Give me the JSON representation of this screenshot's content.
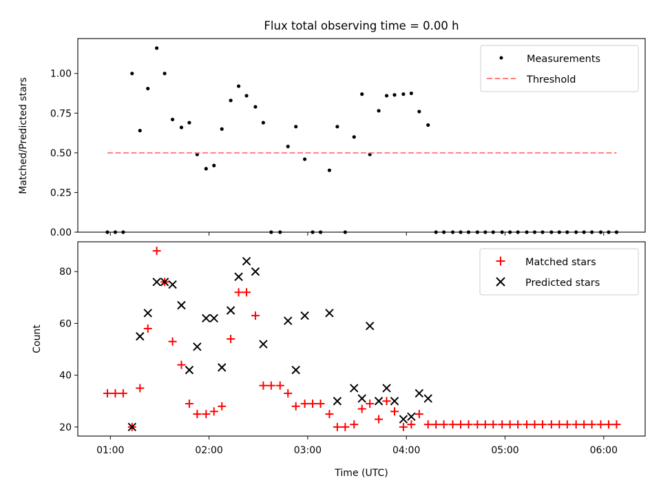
{
  "chart_data": [
    {
      "type": "scatter",
      "title": "Flux total observing time = 0.00 h",
      "xlabel": "",
      "ylabel": "Matched/Predicted stars",
      "ylim": [
        0,
        1.22
      ],
      "xlim_hours": [
        0.67,
        6.42
      ],
      "yticks": [
        0.0,
        0.25,
        0.5,
        0.75,
        1.0
      ],
      "ytick_labels": [
        "0.00",
        "0.25",
        "0.50",
        "0.75",
        "1.00"
      ],
      "grid": false,
      "legend_position": "top-right",
      "series": [
        {
          "name": "Measurements",
          "marker": "dot",
          "color": "#000000",
          "x_hours": [
            0.97,
            1.05,
            1.13,
            1.22,
            1.3,
            1.38,
            1.47,
            1.55,
            1.63,
            1.72,
            1.8,
            1.88,
            1.97,
            2.05,
            2.13,
            2.22,
            2.3,
            2.38,
            2.47,
            2.55,
            2.63,
            2.72,
            2.8,
            2.88,
            2.97,
            3.05,
            3.13,
            3.22,
            3.3,
            3.38,
            3.47,
            3.55,
            3.63,
            3.72,
            3.8,
            3.88,
            3.97,
            4.05,
            4.13,
            4.22,
            4.3,
            4.38,
            4.47,
            4.55,
            4.63,
            4.72,
            4.8,
            4.88,
            4.97,
            5.05,
            5.13,
            5.22,
            5.3,
            5.38,
            5.47,
            5.55,
            5.63,
            5.72,
            5.8,
            5.88,
            5.97,
            6.05,
            6.13
          ],
          "y": [
            0.0,
            0.0,
            0.0,
            1.0,
            0.64,
            0.905,
            1.16,
            1.0,
            0.71,
            0.66,
            0.69,
            0.49,
            0.4,
            0.42,
            0.65,
            0.83,
            0.92,
            0.86,
            0.79,
            0.69,
            0.0,
            0.0,
            0.54,
            0.665,
            0.46,
            0.0,
            0.0,
            0.39,
            0.665,
            0.0,
            0.6,
            0.87,
            0.49,
            0.765,
            0.86,
            0.865,
            0.87,
            0.875,
            0.76,
            0.675,
            0.0,
            0.0,
            0.0,
            0.0,
            0.0,
            0.0,
            0.0,
            0.0,
            0.0,
            0.0,
            0.0,
            0.0,
            0.0,
            0.0,
            0.0,
            0.0,
            0.0,
            0.0,
            0.0,
            0.0,
            0.0,
            0.0,
            0.0
          ]
        },
        {
          "name": "Threshold",
          "marker": "dashed-line",
          "color": "#ff7f7f",
          "x_hours": [
            0.97,
            6.13
          ],
          "y": [
            0.5,
            0.5
          ]
        }
      ]
    },
    {
      "type": "scatter",
      "title": "",
      "xlabel": "Time (UTC)",
      "ylabel": "Count",
      "ylim": [
        16.5,
        91.5
      ],
      "xlim_hours": [
        0.67,
        6.42
      ],
      "yticks": [
        20,
        40,
        60,
        80
      ],
      "ytick_labels": [
        "20",
        "40",
        "60",
        "80"
      ],
      "xticks_hours": [
        1,
        2,
        3,
        4,
        5,
        6
      ],
      "xtick_labels": [
        "01:00",
        "02:00",
        "03:00",
        "04:00",
        "05:00",
        "06:00"
      ],
      "grid": false,
      "legend_position": "top-right",
      "series": [
        {
          "name": "Matched stars",
          "marker": "plus",
          "color": "#ff0000",
          "x_hours": [
            0.97,
            1.05,
            1.13,
            1.22,
            1.3,
            1.38,
            1.47,
            1.55,
            1.63,
            1.72,
            1.8,
            1.88,
            1.97,
            2.05,
            2.13,
            2.22,
            2.3,
            2.38,
            2.47,
            2.55,
            2.63,
            2.72,
            2.8,
            2.88,
            2.97,
            3.05,
            3.13,
            3.22,
            3.3,
            3.38,
            3.47,
            3.55,
            3.63,
            3.72,
            3.8,
            3.88,
            3.97,
            4.05,
            4.13,
            4.22,
            4.3,
            4.38,
            4.47,
            4.55,
            4.63,
            4.72,
            4.8,
            4.88,
            4.97,
            5.05,
            5.13,
            5.22,
            5.3,
            5.38,
            5.47,
            5.55,
            5.63,
            5.72,
            5.8,
            5.88,
            5.97,
            6.05,
            6.13
          ],
          "y": [
            33,
            33,
            33,
            20,
            35,
            58,
            88,
            76,
            53,
            44,
            29,
            25,
            25,
            26,
            28,
            54,
            72,
            72,
            63,
            36,
            36,
            36,
            33,
            28,
            29,
            29,
            29,
            25,
            20,
            20,
            21,
            27,
            29,
            23,
            30,
            26,
            20,
            21,
            25,
            21,
            21,
            21,
            21,
            21,
            21,
            21,
            21,
            21,
            21,
            21,
            21,
            21,
            21,
            21,
            21,
            21,
            21,
            21,
            21,
            21,
            21,
            21,
            21
          ]
        },
        {
          "name": "Predicted stars",
          "marker": "x",
          "color": "#000000",
          "x_hours": [
            1.22,
            1.3,
            1.38,
            1.47,
            1.55,
            1.63,
            1.72,
            1.8,
            1.88,
            1.97,
            2.05,
            2.13,
            2.22,
            2.3,
            2.38,
            2.47,
            2.55,
            2.8,
            2.88,
            2.97,
            3.22,
            3.3,
            3.47,
            3.55,
            3.63,
            3.72,
            3.8,
            3.88,
            3.97,
            4.05,
            4.13,
            4.22
          ],
          "y": [
            20,
            55,
            64,
            76,
            76,
            75,
            67,
            42,
            51,
            62,
            62,
            43,
            65,
            78,
            84,
            80,
            52,
            61,
            42,
            63,
            64,
            30,
            35,
            31,
            59,
            30,
            35,
            30,
            23,
            24,
            33,
            31
          ]
        }
      ]
    }
  ]
}
